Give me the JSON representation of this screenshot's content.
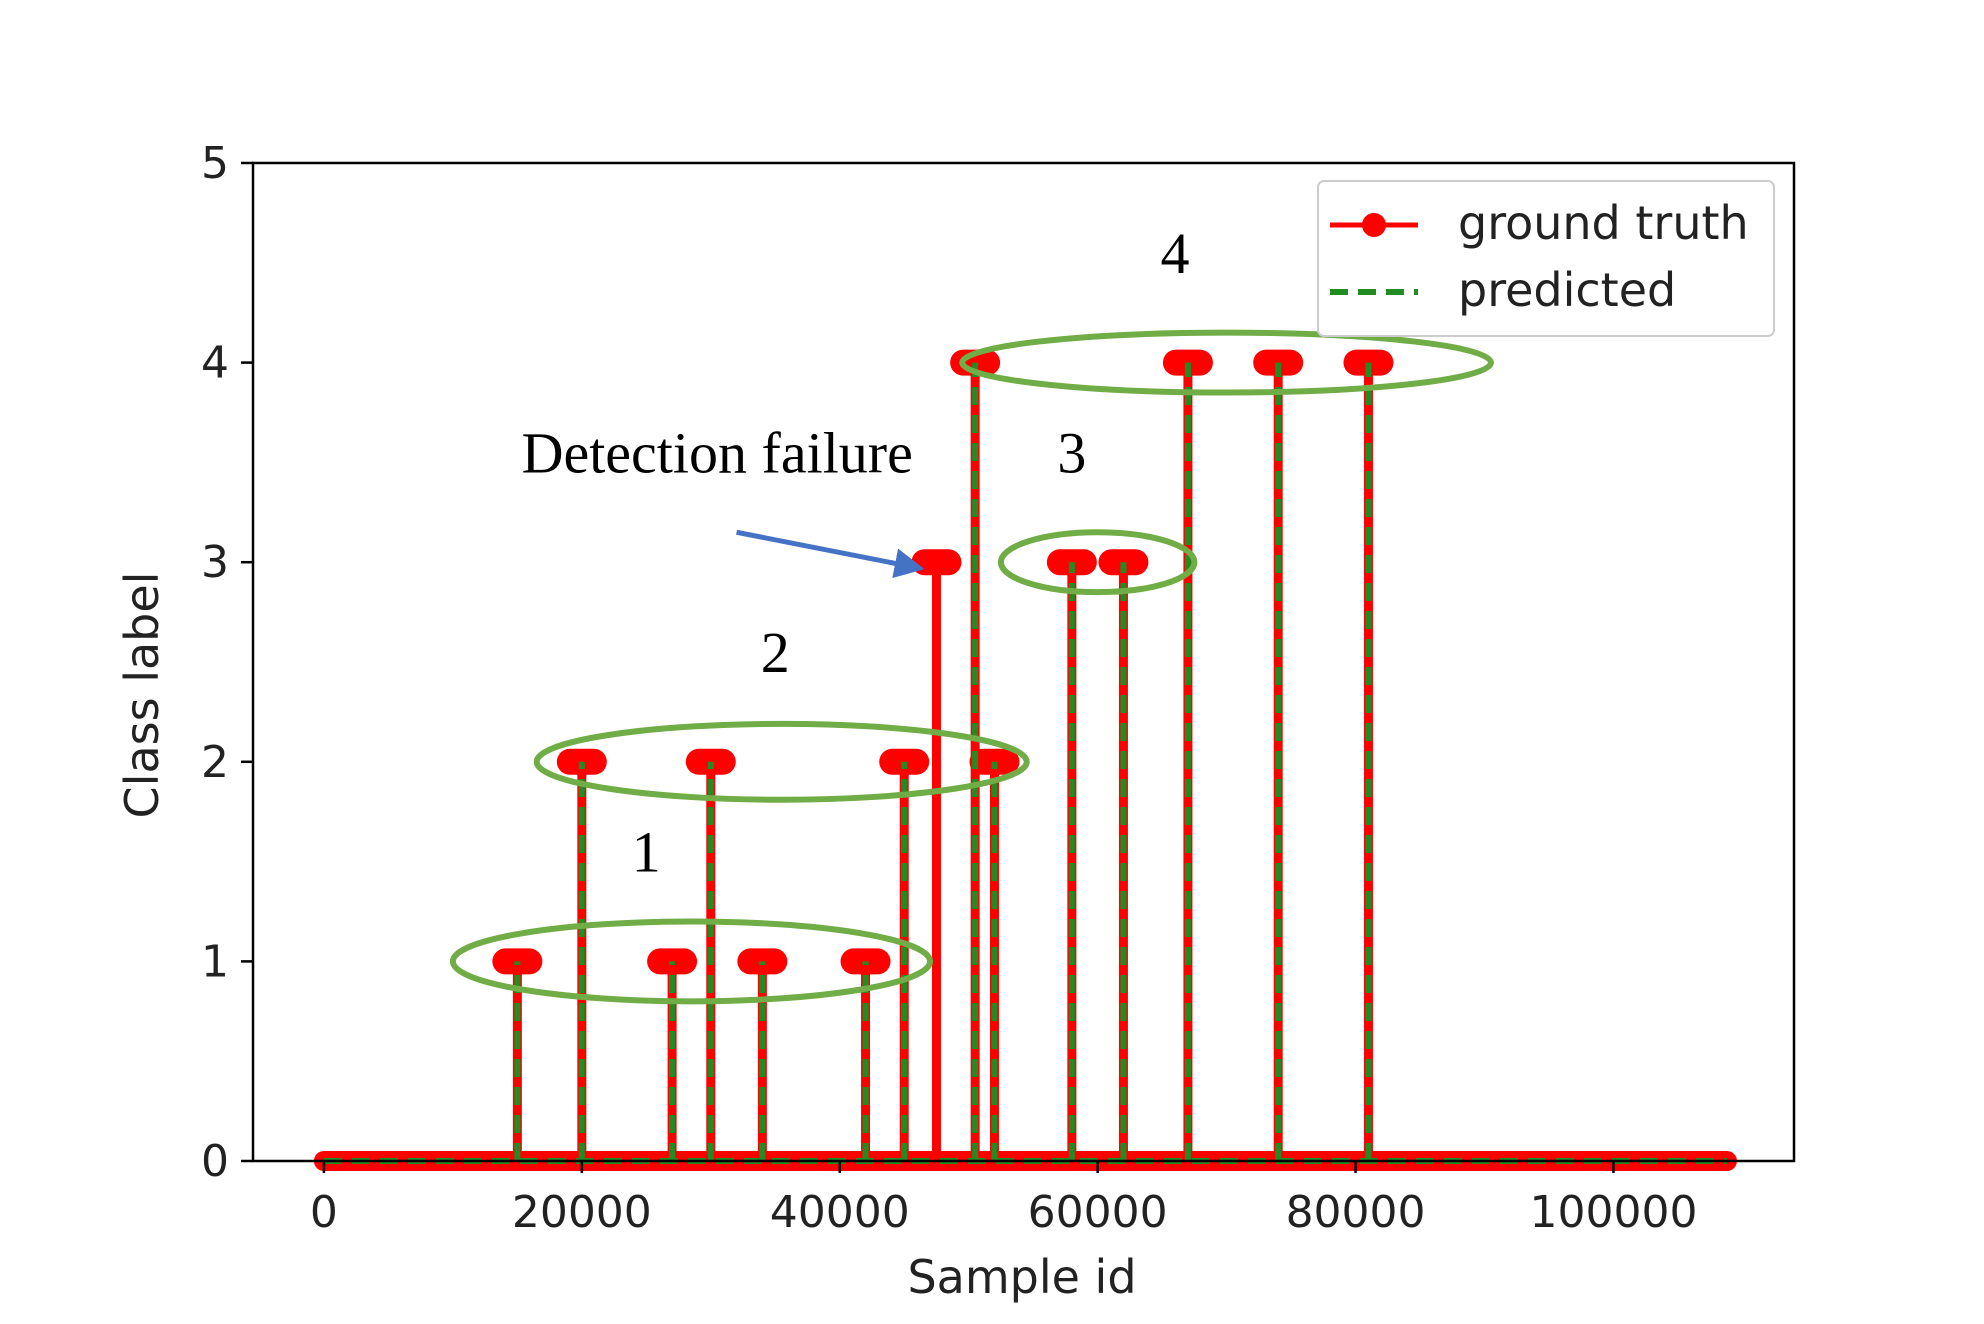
{
  "chart_data": {
    "type": "line",
    "title": "",
    "xlabel": "Sample id",
    "ylabel": "Class label",
    "xlim": [
      -5500,
      114000
    ],
    "ylim": [
      0,
      5
    ],
    "xticks": [
      0,
      20000,
      40000,
      60000,
      80000,
      100000
    ],
    "xtick_labels": [
      "0",
      "20000",
      "40000",
      "60000",
      "80000",
      "100000"
    ],
    "yticks": [
      0,
      1,
      2,
      3,
      4,
      5
    ],
    "ytick_labels": [
      "0",
      "1",
      "2",
      "3",
      "4",
      "5"
    ],
    "grid": false,
    "legend_position": "top-right",
    "x_extent": [
      0,
      108800
    ],
    "colors": {
      "ground_truth": "#ff0000",
      "predicted": "#228b22",
      "ellipse": "#70ad47",
      "arrow": "#4472c4"
    },
    "series": [
      {
        "name": "ground truth",
        "style": "solid-with-circle-markers",
        "events": [
          {
            "x": 15000,
            "y": 1
          },
          {
            "x": 20000,
            "y": 2
          },
          {
            "x": 27000,
            "y": 1
          },
          {
            "x": 30000,
            "y": 2
          },
          {
            "x": 34000,
            "y": 1
          },
          {
            "x": 42000,
            "y": 1
          },
          {
            "x": 45000,
            "y": 2
          },
          {
            "x": 47500,
            "y": 3
          },
          {
            "x": 50500,
            "y": 4
          },
          {
            "x": 52000,
            "y": 2
          },
          {
            "x": 58000,
            "y": 3
          },
          {
            "x": 62000,
            "y": 3
          },
          {
            "x": 67000,
            "y": 4
          },
          {
            "x": 74000,
            "y": 4
          },
          {
            "x": 81000,
            "y": 4
          }
        ]
      },
      {
        "name": "predicted",
        "style": "dashed",
        "events": [
          {
            "x": 15000,
            "y": 1
          },
          {
            "x": 20000,
            "y": 2
          },
          {
            "x": 27000,
            "y": 1
          },
          {
            "x": 30000,
            "y": 2
          },
          {
            "x": 34000,
            "y": 1
          },
          {
            "x": 42000,
            "y": 1
          },
          {
            "x": 45000,
            "y": 2
          },
          {
            "x": 50500,
            "y": 4
          },
          {
            "x": 52000,
            "y": 2
          },
          {
            "x": 58000,
            "y": 3
          },
          {
            "x": 62000,
            "y": 3
          },
          {
            "x": 67000,
            "y": 4
          },
          {
            "x": 74000,
            "y": 4
          },
          {
            "x": 81000,
            "y": 4
          }
        ]
      }
    ],
    "annotations": [
      {
        "text": "1",
        "kind": "group",
        "x": 25000,
        "y": 1.45,
        "ellipse": {
          "cx": 28500,
          "cy": 1,
          "rx": 18500,
          "ry": 0.2
        }
      },
      {
        "text": "2",
        "kind": "group",
        "x": 35000,
        "y": 2.45,
        "ellipse": {
          "cx": 35500,
          "cy": 2,
          "rx": 19000,
          "ry": 0.19
        }
      },
      {
        "text": "3",
        "kind": "group",
        "x": 58000,
        "y": 3.45,
        "ellipse": {
          "cx": 60000,
          "cy": 3,
          "rx": 7500,
          "ry": 0.15
        }
      },
      {
        "text": "4",
        "kind": "group",
        "x": 66000,
        "y": 4.45,
        "ellipse": {
          "cx": 70000,
          "cy": 4,
          "rx": 20500,
          "ry": 0.15
        }
      },
      {
        "text": "Detection failure",
        "kind": "arrow",
        "x": 30500,
        "y": 3.45,
        "arrow_from": {
          "x": 32000,
          "y": 3.15
        },
        "arrow_to": {
          "x": 46200,
          "y": 2.97
        }
      }
    ]
  }
}
